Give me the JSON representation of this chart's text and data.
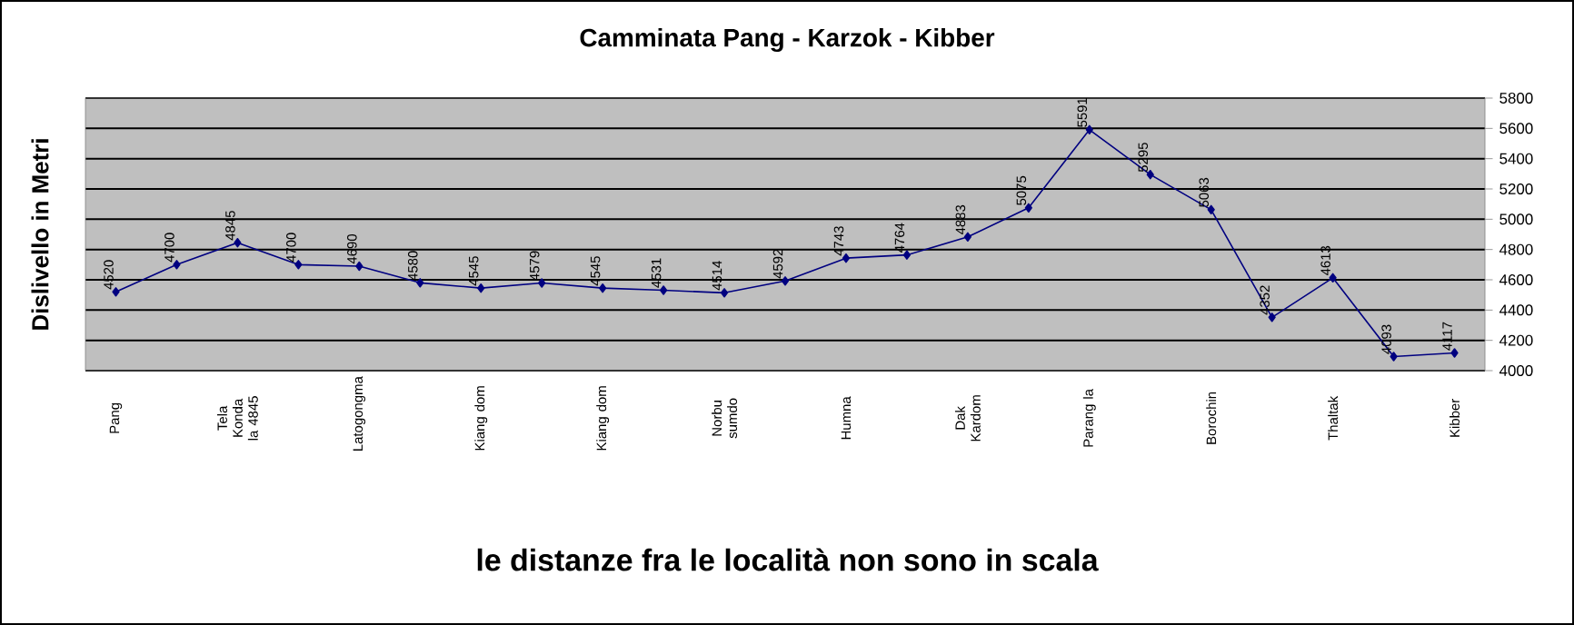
{
  "chart_data": {
    "type": "line",
    "title": "Camminata Pang - Karzok - Kibber",
    "ylabel": "Dislivello in Metri",
    "xlabel": "le distanze fra le località non sono in scala",
    "categories": [
      "Pang",
      null,
      "Tela Konda la 4845",
      null,
      "Latogongma",
      null,
      "Kiang dom",
      null,
      "Kiang dom",
      null,
      "Norbu sumdo",
      null,
      "Humna",
      null,
      "Dak Kardom",
      null,
      "Parang la",
      null,
      "Borochin",
      null,
      "Thaltak",
      null,
      "Kibber"
    ],
    "values": [
      4520,
      4700,
      4845,
      4700,
      4690,
      4580,
      4545,
      4579,
      4545,
      4531,
      4514,
      4592,
      4743,
      4764,
      4883,
      5075,
      5591,
      5295,
      5063,
      4352,
      4613,
      4093,
      4117
    ],
    "color": "#000080",
    "marker": "diamond",
    "data_labels": true,
    "grid": "y",
    "ylim": [
      4000,
      5800
    ],
    "yticks": [
      4000,
      4200,
      4400,
      4600,
      4800,
      5000,
      5200,
      5400,
      5600,
      5800
    ]
  }
}
